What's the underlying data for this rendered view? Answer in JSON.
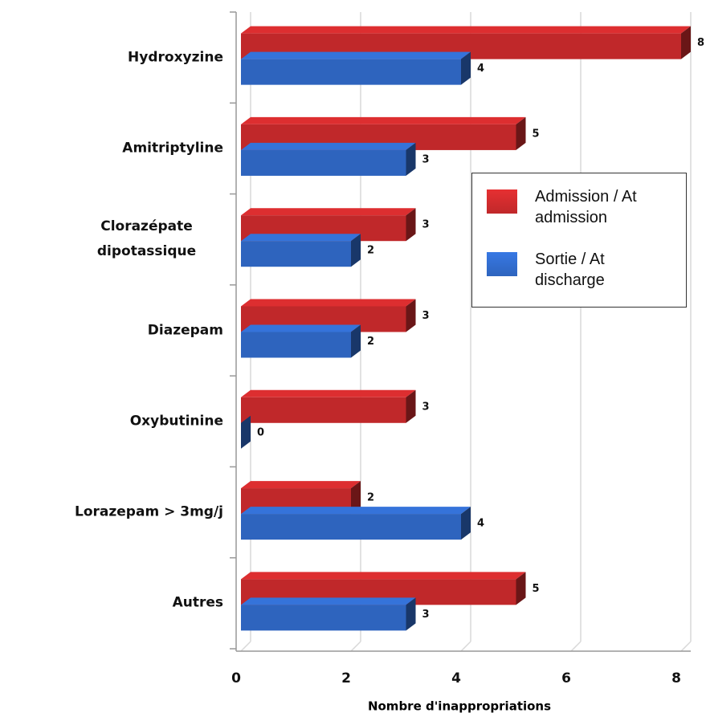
{
  "chart_data": {
    "type": "bar",
    "orientation": "horizontal",
    "xlabel": "Nombre d'inappropriations",
    "categories": [
      "Hydroxyzine",
      "Amitriptyline",
      "Clorazépate dipotassique",
      "Diazepam",
      "Oxybutinine",
      "Lorazepam > 3mg/j",
      "Autres"
    ],
    "series": [
      {
        "name": "Admission / At admission",
        "color": "#c0282a",
        "values": [
          8,
          5,
          3,
          3,
          3,
          2,
          5
        ]
      },
      {
        "name": "Sortie / At discharge",
        "color": "#2e64be",
        "values": [
          4,
          3,
          2,
          2,
          0,
          4,
          3
        ]
      }
    ],
    "xlim": [
      0,
      8
    ],
    "xticks": [
      0,
      2,
      4,
      6,
      8
    ],
    "grid": true
  }
}
